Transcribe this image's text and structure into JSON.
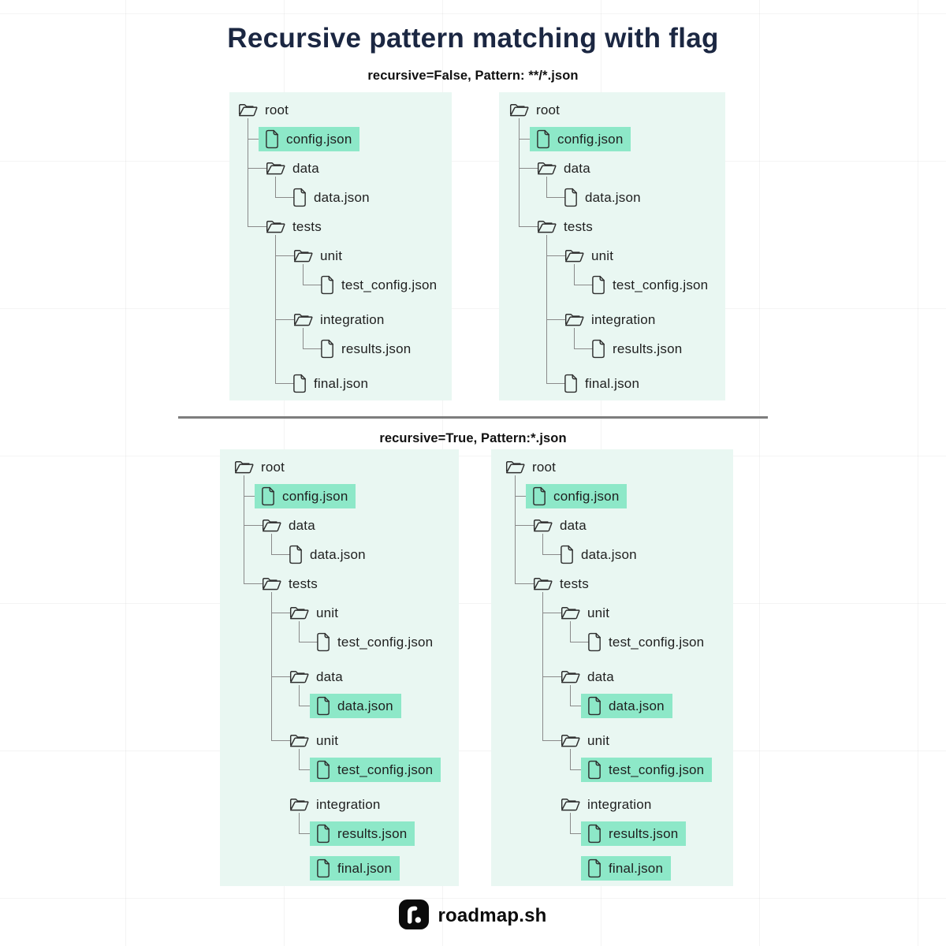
{
  "title": "Recursive pattern matching with flag",
  "sections": [
    {
      "caption": "recursive=False, Pattern: **/*.json"
    },
    {
      "caption": "recursive=True, Pattern:*.json"
    }
  ],
  "trees": {
    "recursive_false": {
      "nodes": [
        {
          "label": "root",
          "type": "folder",
          "level": 0,
          "highlight": false,
          "gap": false
        },
        {
          "label": "config.json",
          "type": "file",
          "level": 1,
          "highlight": true,
          "gap": false
        },
        {
          "label": "data",
          "type": "folder",
          "level": 1,
          "highlight": false,
          "gap": false
        },
        {
          "label": "data.json",
          "type": "file",
          "level": 2,
          "highlight": false,
          "gap": false
        },
        {
          "label": "tests",
          "type": "folder",
          "level": 1,
          "highlight": false,
          "gap": false
        },
        {
          "label": "unit",
          "type": "folder",
          "level": 2,
          "highlight": false,
          "gap": false
        },
        {
          "label": "test_config.json",
          "type": "file",
          "level": 3,
          "highlight": false,
          "gap": false
        },
        {
          "label": "integration",
          "type": "folder",
          "level": 2,
          "highlight": false,
          "gap": true
        },
        {
          "label": "results.json",
          "type": "file",
          "level": 3,
          "highlight": false,
          "gap": false
        },
        {
          "label": "final.json",
          "type": "file",
          "level": 2,
          "highlight": false,
          "gap": true
        }
      ],
      "connectors": [
        {
          "parent": 0,
          "children": [
            1,
            2,
            4
          ]
        },
        {
          "parent": 2,
          "children": [
            3
          ]
        },
        {
          "parent": 4,
          "children": [
            5,
            7,
            9
          ]
        },
        {
          "parent": 5,
          "children": [
            6
          ]
        },
        {
          "parent": 7,
          "children": [
            8
          ]
        }
      ]
    },
    "recursive_true": {
      "nodes": [
        {
          "label": "root",
          "type": "folder",
          "level": 0,
          "highlight": false,
          "gap": false
        },
        {
          "label": "config.json",
          "type": "file",
          "level": 1,
          "highlight": true,
          "gap": false
        },
        {
          "label": "data",
          "type": "folder",
          "level": 1,
          "highlight": false,
          "gap": false
        },
        {
          "label": "data.json",
          "type": "file",
          "level": 2,
          "highlight": false,
          "gap": false
        },
        {
          "label": "tests",
          "type": "folder",
          "level": 1,
          "highlight": false,
          "gap": false
        },
        {
          "label": "unit",
          "type": "folder",
          "level": 2,
          "highlight": false,
          "gap": false
        },
        {
          "label": "test_config.json",
          "type": "file",
          "level": 3,
          "highlight": false,
          "gap": false
        },
        {
          "label": "data",
          "type": "folder",
          "level": 2,
          "highlight": false,
          "gap": true
        },
        {
          "label": "data.json",
          "type": "file",
          "level": 3,
          "highlight": true,
          "gap": false
        },
        {
          "label": "unit",
          "type": "folder",
          "level": 2,
          "highlight": false,
          "gap": true
        },
        {
          "label": "test_config.json",
          "type": "file",
          "level": 3,
          "highlight": true,
          "gap": false
        },
        {
          "label": "integration",
          "type": "folder",
          "level": 2,
          "highlight": false,
          "gap": true
        },
        {
          "label": "results.json",
          "type": "file",
          "level": 3,
          "highlight": true,
          "gap": false
        },
        {
          "label": "final.json",
          "type": "file",
          "level": 3,
          "highlight": true,
          "gap": true
        }
      ],
      "connectors": [
        {
          "parent": 0,
          "children": [
            1,
            2,
            4
          ]
        },
        {
          "parent": 2,
          "children": [
            3
          ]
        },
        {
          "parent": 4,
          "children": [
            5,
            7,
            9
          ]
        },
        {
          "parent": 5,
          "children": [
            6
          ]
        },
        {
          "parent": 7,
          "children": [
            8
          ]
        },
        {
          "parent": 9,
          "children": [
            10
          ]
        },
        {
          "parent": 11,
          "children": [
            12
          ]
        }
      ]
    }
  },
  "panels": [
    {
      "tree": "recursive_false",
      "position": "top-left"
    },
    {
      "tree": "recursive_false",
      "position": "top-right"
    },
    {
      "tree": "recursive_true",
      "position": "bottom-left"
    },
    {
      "tree": "recursive_true",
      "position": "bottom-right"
    }
  ],
  "footer": {
    "brand": "roadmap.sh"
  },
  "colors": {
    "highlight": "#8de8c8",
    "panel_bg": "#e9f7f2",
    "title": "#1b2742",
    "divider": "#7d7d7d",
    "line": "#8a8a8a",
    "text": "#1f1f1f"
  }
}
